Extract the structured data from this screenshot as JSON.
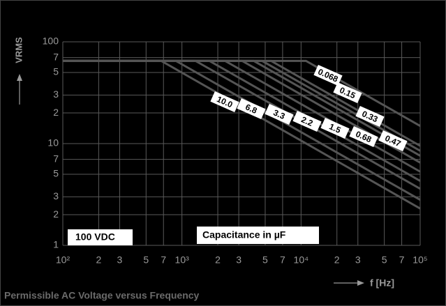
{
  "chart_data": {
    "type": "line",
    "title": "Permissible AC Voltage versus Frequency",
    "y_label": "VRMS",
    "x_label": "f [Hz]",
    "annotations": [
      "100 VDC",
      "Capacitance in µF"
    ],
    "log_x": true,
    "log_y": true,
    "grid": true,
    "xlim": [
      100,
      100000
    ],
    "ylim": [
      1,
      100
    ],
    "xticks": [
      {
        "value": 100,
        "label": "10²"
      },
      {
        "value": 200,
        "label": "2"
      },
      {
        "value": 300,
        "label": "3"
      },
      {
        "value": 500,
        "label": "5"
      },
      {
        "value": 700,
        "label": "7"
      },
      {
        "value": 1000,
        "label": "10³"
      },
      {
        "value": 2000,
        "label": "2"
      },
      {
        "value": 3000,
        "label": "3"
      },
      {
        "value": 5000,
        "label": "5"
      },
      {
        "value": 7000,
        "label": "7"
      },
      {
        "value": 10000,
        "label": "10⁴"
      },
      {
        "value": 20000,
        "label": "2"
      },
      {
        "value": 30000,
        "label": "3"
      },
      {
        "value": 50000,
        "label": "5"
      },
      {
        "value": 70000,
        "label": "7"
      },
      {
        "value": 100000,
        "label": "10⁵"
      }
    ],
    "yticks": [
      1,
      2,
      3,
      5,
      7,
      10,
      {
        "value": 20,
        "label": "2"
      },
      {
        "value": 30,
        "label": "3"
      },
      {
        "value": 50,
        "label": "5"
      },
      {
        "value": 70,
        "label": "7"
      },
      100
    ],
    "series": [
      {
        "name": "10.0",
        "color": "#555555",
        "x": [
          100,
          670,
          100000
        ],
        "values": [
          65,
          65,
          2.3
        ]
      },
      {
        "name": "6.8",
        "color": "#555555",
        "x": [
          100,
          890,
          100000
        ],
        "values": [
          65,
          65,
          2.8
        ]
      },
      {
        "name": "3.3",
        "color": "#555555",
        "x": [
          100,
          1300,
          100000
        ],
        "values": [
          65,
          65,
          3.6
        ]
      },
      {
        "name": "2.2",
        "color": "#555555",
        "x": [
          100,
          1700,
          100000
        ],
        "values": [
          65,
          65,
          4.3
        ]
      },
      {
        "name": "1.5",
        "color": "#555555",
        "x": [
          100,
          2300,
          100000
        ],
        "values": [
          65,
          65,
          5.3
        ]
      },
      {
        "name": "0.68",
        "color": "#555555",
        "x": [
          100,
          3200,
          100000
        ],
        "values": [
          65,
          65,
          6.5
        ]
      },
      {
        "name": "0.47",
        "color": "#555555",
        "x": [
          100,
          4000,
          100000
        ],
        "values": [
          65,
          65,
          7.6
        ]
      },
      {
        "name": "0.33",
        "color": "#555555",
        "x": [
          100,
          4700,
          100000
        ],
        "values": [
          65,
          65,
          8.5
        ]
      },
      {
        "name": "0.15",
        "color": "#555555",
        "x": [
          100,
          5600,
          100000
        ],
        "values": [
          65,
          65,
          9.5
        ]
      },
      {
        "name": "0.068",
        "color": "#555555",
        "x": [
          100,
          11000,
          100000
        ],
        "values": [
          65,
          65,
          14.9
        ]
      }
    ]
  }
}
